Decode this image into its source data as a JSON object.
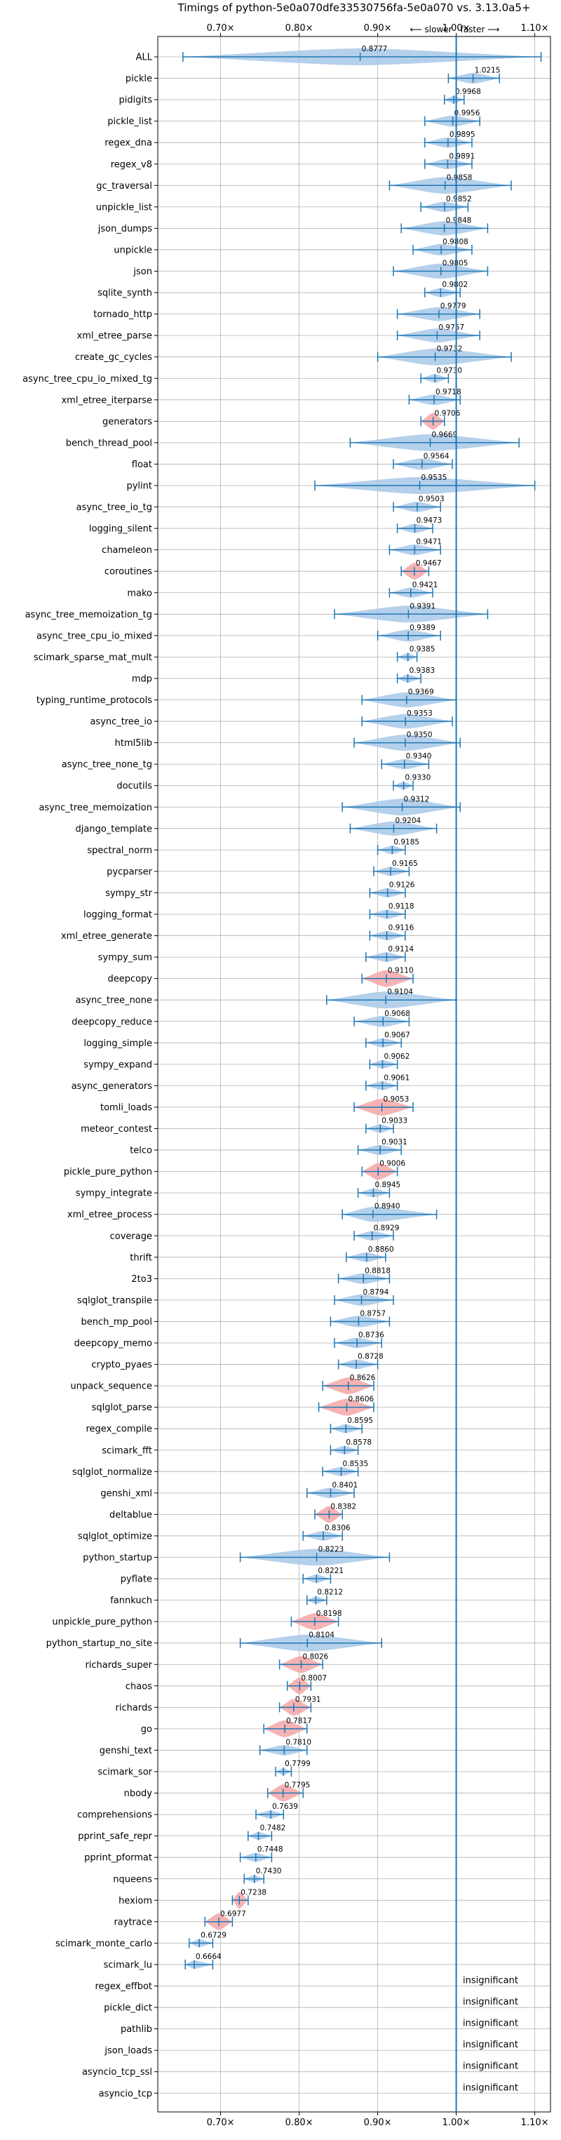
{
  "chart_data": {
    "type": "violin",
    "title": "Timings of python-5e0a070dfe33530756fa-5e0a070 vs. 3.13.0a5+",
    "direction_labels": {
      "slower": "⟵ slower",
      "faster": "faster ⟶"
    },
    "xlim": [
      0.62,
      1.12
    ],
    "x_ticks": [
      0.7,
      0.8,
      0.9,
      1.0,
      1.1
    ],
    "x_tick_labels": [
      "0.70×",
      "0.80×",
      "0.90×",
      "1.00×",
      "1.10×"
    ],
    "reference_line": 1.0,
    "colors": {
      "normal": "#a8c8e8",
      "highlight": "#f4a6a6",
      "whisker": "#1f77b4",
      "grid": "#b0b0b0"
    },
    "benchmarks": [
      {
        "name": "ALL",
        "value": 0.8777,
        "lo": 0.652,
        "hi": 1.108,
        "highlight": false
      },
      {
        "name": "pickle",
        "value": 1.0215,
        "lo": 0.99,
        "hi": 1.055,
        "highlight": false
      },
      {
        "name": "pidigits",
        "value": 0.9968,
        "lo": 0.985,
        "hi": 1.01,
        "highlight": false
      },
      {
        "name": "pickle_list",
        "value": 0.9956,
        "lo": 0.96,
        "hi": 1.03,
        "highlight": false
      },
      {
        "name": "regex_dna",
        "value": 0.9895,
        "lo": 0.96,
        "hi": 1.02,
        "highlight": false
      },
      {
        "name": "regex_v8",
        "value": 0.9891,
        "lo": 0.96,
        "hi": 1.02,
        "highlight": false
      },
      {
        "name": "gc_traversal",
        "value": 0.9858,
        "lo": 0.915,
        "hi": 1.07,
        "highlight": false
      },
      {
        "name": "unpickle_list",
        "value": 0.9852,
        "lo": 0.955,
        "hi": 1.015,
        "highlight": false
      },
      {
        "name": "json_dumps",
        "value": 0.9848,
        "lo": 0.93,
        "hi": 1.04,
        "highlight": false
      },
      {
        "name": "unpickle",
        "value": 0.9808,
        "lo": 0.945,
        "hi": 1.02,
        "highlight": false
      },
      {
        "name": "json",
        "value": 0.9805,
        "lo": 0.92,
        "hi": 1.04,
        "highlight": false
      },
      {
        "name": "sqlite_synth",
        "value": 0.9802,
        "lo": 0.96,
        "hi": 1.005,
        "highlight": false
      },
      {
        "name": "tornado_http",
        "value": 0.9779,
        "lo": 0.925,
        "hi": 1.03,
        "highlight": false
      },
      {
        "name": "xml_etree_parse",
        "value": 0.9757,
        "lo": 0.925,
        "hi": 1.03,
        "highlight": false
      },
      {
        "name": "create_gc_cycles",
        "value": 0.9732,
        "lo": 0.9,
        "hi": 1.07,
        "highlight": false
      },
      {
        "name": "async_tree_cpu_io_mixed_tg",
        "value": 0.973,
        "lo": 0.955,
        "hi": 0.99,
        "highlight": false
      },
      {
        "name": "xml_etree_iterparse",
        "value": 0.9718,
        "lo": 0.94,
        "hi": 1.005,
        "highlight": false
      },
      {
        "name": "generators",
        "value": 0.9706,
        "lo": 0.955,
        "hi": 0.985,
        "highlight": true
      },
      {
        "name": "bench_thread_pool",
        "value": 0.9669,
        "lo": 0.865,
        "hi": 1.08,
        "highlight": false
      },
      {
        "name": "float",
        "value": 0.9564,
        "lo": 0.92,
        "hi": 0.995,
        "highlight": false
      },
      {
        "name": "pylint",
        "value": 0.9535,
        "lo": 0.82,
        "hi": 1.1,
        "highlight": false
      },
      {
        "name": "async_tree_io_tg",
        "value": 0.9503,
        "lo": 0.92,
        "hi": 0.98,
        "highlight": false
      },
      {
        "name": "logging_silent",
        "value": 0.9473,
        "lo": 0.925,
        "hi": 0.97,
        "highlight": false
      },
      {
        "name": "chameleon",
        "value": 0.9471,
        "lo": 0.915,
        "hi": 0.98,
        "highlight": false
      },
      {
        "name": "coroutines",
        "value": 0.9467,
        "lo": 0.93,
        "hi": 0.965,
        "highlight": true
      },
      {
        "name": "mako",
        "value": 0.9421,
        "lo": 0.915,
        "hi": 0.97,
        "highlight": false
      },
      {
        "name": "async_tree_memoization_tg",
        "value": 0.9391,
        "lo": 0.845,
        "hi": 1.04,
        "highlight": false
      },
      {
        "name": "async_tree_cpu_io_mixed",
        "value": 0.9389,
        "lo": 0.9,
        "hi": 0.98,
        "highlight": false
      },
      {
        "name": "scimark_sparse_mat_mult",
        "value": 0.9385,
        "lo": 0.925,
        "hi": 0.95,
        "highlight": false
      },
      {
        "name": "mdp",
        "value": 0.9383,
        "lo": 0.925,
        "hi": 0.955,
        "highlight": false
      },
      {
        "name": "typing_runtime_protocols",
        "value": 0.9369,
        "lo": 0.88,
        "hi": 1.0,
        "highlight": false
      },
      {
        "name": "async_tree_io",
        "value": 0.9353,
        "lo": 0.88,
        "hi": 0.995,
        "highlight": false
      },
      {
        "name": "html5lib",
        "value": 0.935,
        "lo": 0.87,
        "hi": 1.005,
        "highlight": false
      },
      {
        "name": "async_tree_none_tg",
        "value": 0.934,
        "lo": 0.905,
        "hi": 0.965,
        "highlight": false
      },
      {
        "name": "docutils",
        "value": 0.933,
        "lo": 0.92,
        "hi": 0.945,
        "highlight": false
      },
      {
        "name": "async_tree_memoization",
        "value": 0.9312,
        "lo": 0.855,
        "hi": 1.005,
        "highlight": false
      },
      {
        "name": "django_template",
        "value": 0.9204,
        "lo": 0.865,
        "hi": 0.975,
        "highlight": false
      },
      {
        "name": "spectral_norm",
        "value": 0.9185,
        "lo": 0.9,
        "hi": 0.935,
        "highlight": false
      },
      {
        "name": "pycparser",
        "value": 0.9165,
        "lo": 0.895,
        "hi": 0.94,
        "highlight": false
      },
      {
        "name": "sympy_str",
        "value": 0.9126,
        "lo": 0.89,
        "hi": 0.935,
        "highlight": false
      },
      {
        "name": "logging_format",
        "value": 0.9118,
        "lo": 0.89,
        "hi": 0.935,
        "highlight": false
      },
      {
        "name": "xml_etree_generate",
        "value": 0.9116,
        "lo": 0.89,
        "hi": 0.935,
        "highlight": false
      },
      {
        "name": "sympy_sum",
        "value": 0.9114,
        "lo": 0.885,
        "hi": 0.935,
        "highlight": false
      },
      {
        "name": "deepcopy",
        "value": 0.911,
        "lo": 0.88,
        "hi": 0.945,
        "highlight": true
      },
      {
        "name": "async_tree_none",
        "value": 0.9104,
        "lo": 0.835,
        "hi": 1.0,
        "highlight": false
      },
      {
        "name": "deepcopy_reduce",
        "value": 0.9068,
        "lo": 0.87,
        "hi": 0.94,
        "highlight": false
      },
      {
        "name": "logging_simple",
        "value": 0.9067,
        "lo": 0.885,
        "hi": 0.93,
        "highlight": false
      },
      {
        "name": "sympy_expand",
        "value": 0.9062,
        "lo": 0.89,
        "hi": 0.925,
        "highlight": false
      },
      {
        "name": "async_generators",
        "value": 0.9061,
        "lo": 0.885,
        "hi": 0.925,
        "highlight": false
      },
      {
        "name": "tomli_loads",
        "value": 0.9053,
        "lo": 0.87,
        "hi": 0.945,
        "highlight": true
      },
      {
        "name": "meteor_contest",
        "value": 0.9033,
        "lo": 0.885,
        "hi": 0.92,
        "highlight": false
      },
      {
        "name": "telco",
        "value": 0.9031,
        "lo": 0.875,
        "hi": 0.93,
        "highlight": false
      },
      {
        "name": "pickle_pure_python",
        "value": 0.9006,
        "lo": 0.88,
        "hi": 0.925,
        "highlight": true
      },
      {
        "name": "sympy_integrate",
        "value": 0.8945,
        "lo": 0.875,
        "hi": 0.915,
        "highlight": false
      },
      {
        "name": "xml_etree_process",
        "value": 0.894,
        "lo": 0.855,
        "hi": 0.975,
        "highlight": false
      },
      {
        "name": "coverage",
        "value": 0.8929,
        "lo": 0.87,
        "hi": 0.92,
        "highlight": false
      },
      {
        "name": "thrift",
        "value": 0.886,
        "lo": 0.86,
        "hi": 0.91,
        "highlight": false
      },
      {
        "name": "2to3",
        "value": 0.8818,
        "lo": 0.85,
        "hi": 0.915,
        "highlight": false
      },
      {
        "name": "sqlglot_transpile",
        "value": 0.8794,
        "lo": 0.845,
        "hi": 0.92,
        "highlight": false
      },
      {
        "name": "bench_mp_pool",
        "value": 0.8757,
        "lo": 0.84,
        "hi": 0.915,
        "highlight": false
      },
      {
        "name": "deepcopy_memo",
        "value": 0.8736,
        "lo": 0.845,
        "hi": 0.905,
        "highlight": false
      },
      {
        "name": "crypto_pyaes",
        "value": 0.8728,
        "lo": 0.85,
        "hi": 0.9,
        "highlight": false
      },
      {
        "name": "unpack_sequence",
        "value": 0.8626,
        "lo": 0.83,
        "hi": 0.895,
        "highlight": true
      },
      {
        "name": "sqlglot_parse",
        "value": 0.8606,
        "lo": 0.825,
        "hi": 0.895,
        "highlight": true
      },
      {
        "name": "regex_compile",
        "value": 0.8595,
        "lo": 0.84,
        "hi": 0.88,
        "highlight": false
      },
      {
        "name": "scimark_fft",
        "value": 0.8578,
        "lo": 0.84,
        "hi": 0.875,
        "highlight": false
      },
      {
        "name": "sqlglot_normalize",
        "value": 0.8535,
        "lo": 0.83,
        "hi": 0.875,
        "highlight": false
      },
      {
        "name": "genshi_xml",
        "value": 0.8401,
        "lo": 0.81,
        "hi": 0.87,
        "highlight": false
      },
      {
        "name": "deltablue",
        "value": 0.8382,
        "lo": 0.82,
        "hi": 0.855,
        "highlight": true
      },
      {
        "name": "sqlglot_optimize",
        "value": 0.8306,
        "lo": 0.805,
        "hi": 0.855,
        "highlight": false
      },
      {
        "name": "python_startup",
        "value": 0.8223,
        "lo": 0.725,
        "hi": 0.915,
        "highlight": false
      },
      {
        "name": "pyflate",
        "value": 0.8221,
        "lo": 0.805,
        "hi": 0.84,
        "highlight": false
      },
      {
        "name": "fannkuch",
        "value": 0.8212,
        "lo": 0.81,
        "hi": 0.835,
        "highlight": false
      },
      {
        "name": "unpickle_pure_python",
        "value": 0.8198,
        "lo": 0.79,
        "hi": 0.85,
        "highlight": true
      },
      {
        "name": "python_startup_no_site",
        "value": 0.8104,
        "lo": 0.725,
        "hi": 0.905,
        "highlight": false
      },
      {
        "name": "richards_super",
        "value": 0.8026,
        "lo": 0.775,
        "hi": 0.83,
        "highlight": true
      },
      {
        "name": "chaos",
        "value": 0.8007,
        "lo": 0.785,
        "hi": 0.815,
        "highlight": true
      },
      {
        "name": "richards",
        "value": 0.7931,
        "lo": 0.775,
        "hi": 0.815,
        "highlight": true
      },
      {
        "name": "go",
        "value": 0.7817,
        "lo": 0.755,
        "hi": 0.81,
        "highlight": true
      },
      {
        "name": "genshi_text",
        "value": 0.781,
        "lo": 0.75,
        "hi": 0.81,
        "highlight": false
      },
      {
        "name": "scimark_sor",
        "value": 0.7799,
        "lo": 0.77,
        "hi": 0.79,
        "highlight": false
      },
      {
        "name": "nbody",
        "value": 0.7795,
        "lo": 0.76,
        "hi": 0.805,
        "highlight": true
      },
      {
        "name": "comprehensions",
        "value": 0.7639,
        "lo": 0.745,
        "hi": 0.78,
        "highlight": false
      },
      {
        "name": "pprint_safe_repr",
        "value": 0.7482,
        "lo": 0.735,
        "hi": 0.765,
        "highlight": false
      },
      {
        "name": "pprint_pformat",
        "value": 0.7448,
        "lo": 0.725,
        "hi": 0.765,
        "highlight": false
      },
      {
        "name": "nqueens",
        "value": 0.743,
        "lo": 0.73,
        "hi": 0.755,
        "highlight": false
      },
      {
        "name": "hexiom",
        "value": 0.7238,
        "lo": 0.715,
        "hi": 0.735,
        "highlight": true
      },
      {
        "name": "raytrace",
        "value": 0.6977,
        "lo": 0.68,
        "hi": 0.715,
        "highlight": true
      },
      {
        "name": "scimark_monte_carlo",
        "value": 0.6729,
        "lo": 0.66,
        "hi": 0.69,
        "highlight": false
      },
      {
        "name": "scimark_lu",
        "value": 0.6664,
        "lo": 0.655,
        "hi": 0.69,
        "highlight": false
      },
      {
        "name": "regex_effbot",
        "value": null,
        "insignificant": true
      },
      {
        "name": "pickle_dict",
        "value": null,
        "insignificant": true
      },
      {
        "name": "pathlib",
        "value": null,
        "insignificant": true
      },
      {
        "name": "json_loads",
        "value": null,
        "insignificant": true
      },
      {
        "name": "asyncio_tcp_ssl",
        "value": null,
        "insignificant": true
      },
      {
        "name": "asyncio_tcp",
        "value": null,
        "insignificant": true
      }
    ],
    "insignificant_label": "insignificant"
  }
}
